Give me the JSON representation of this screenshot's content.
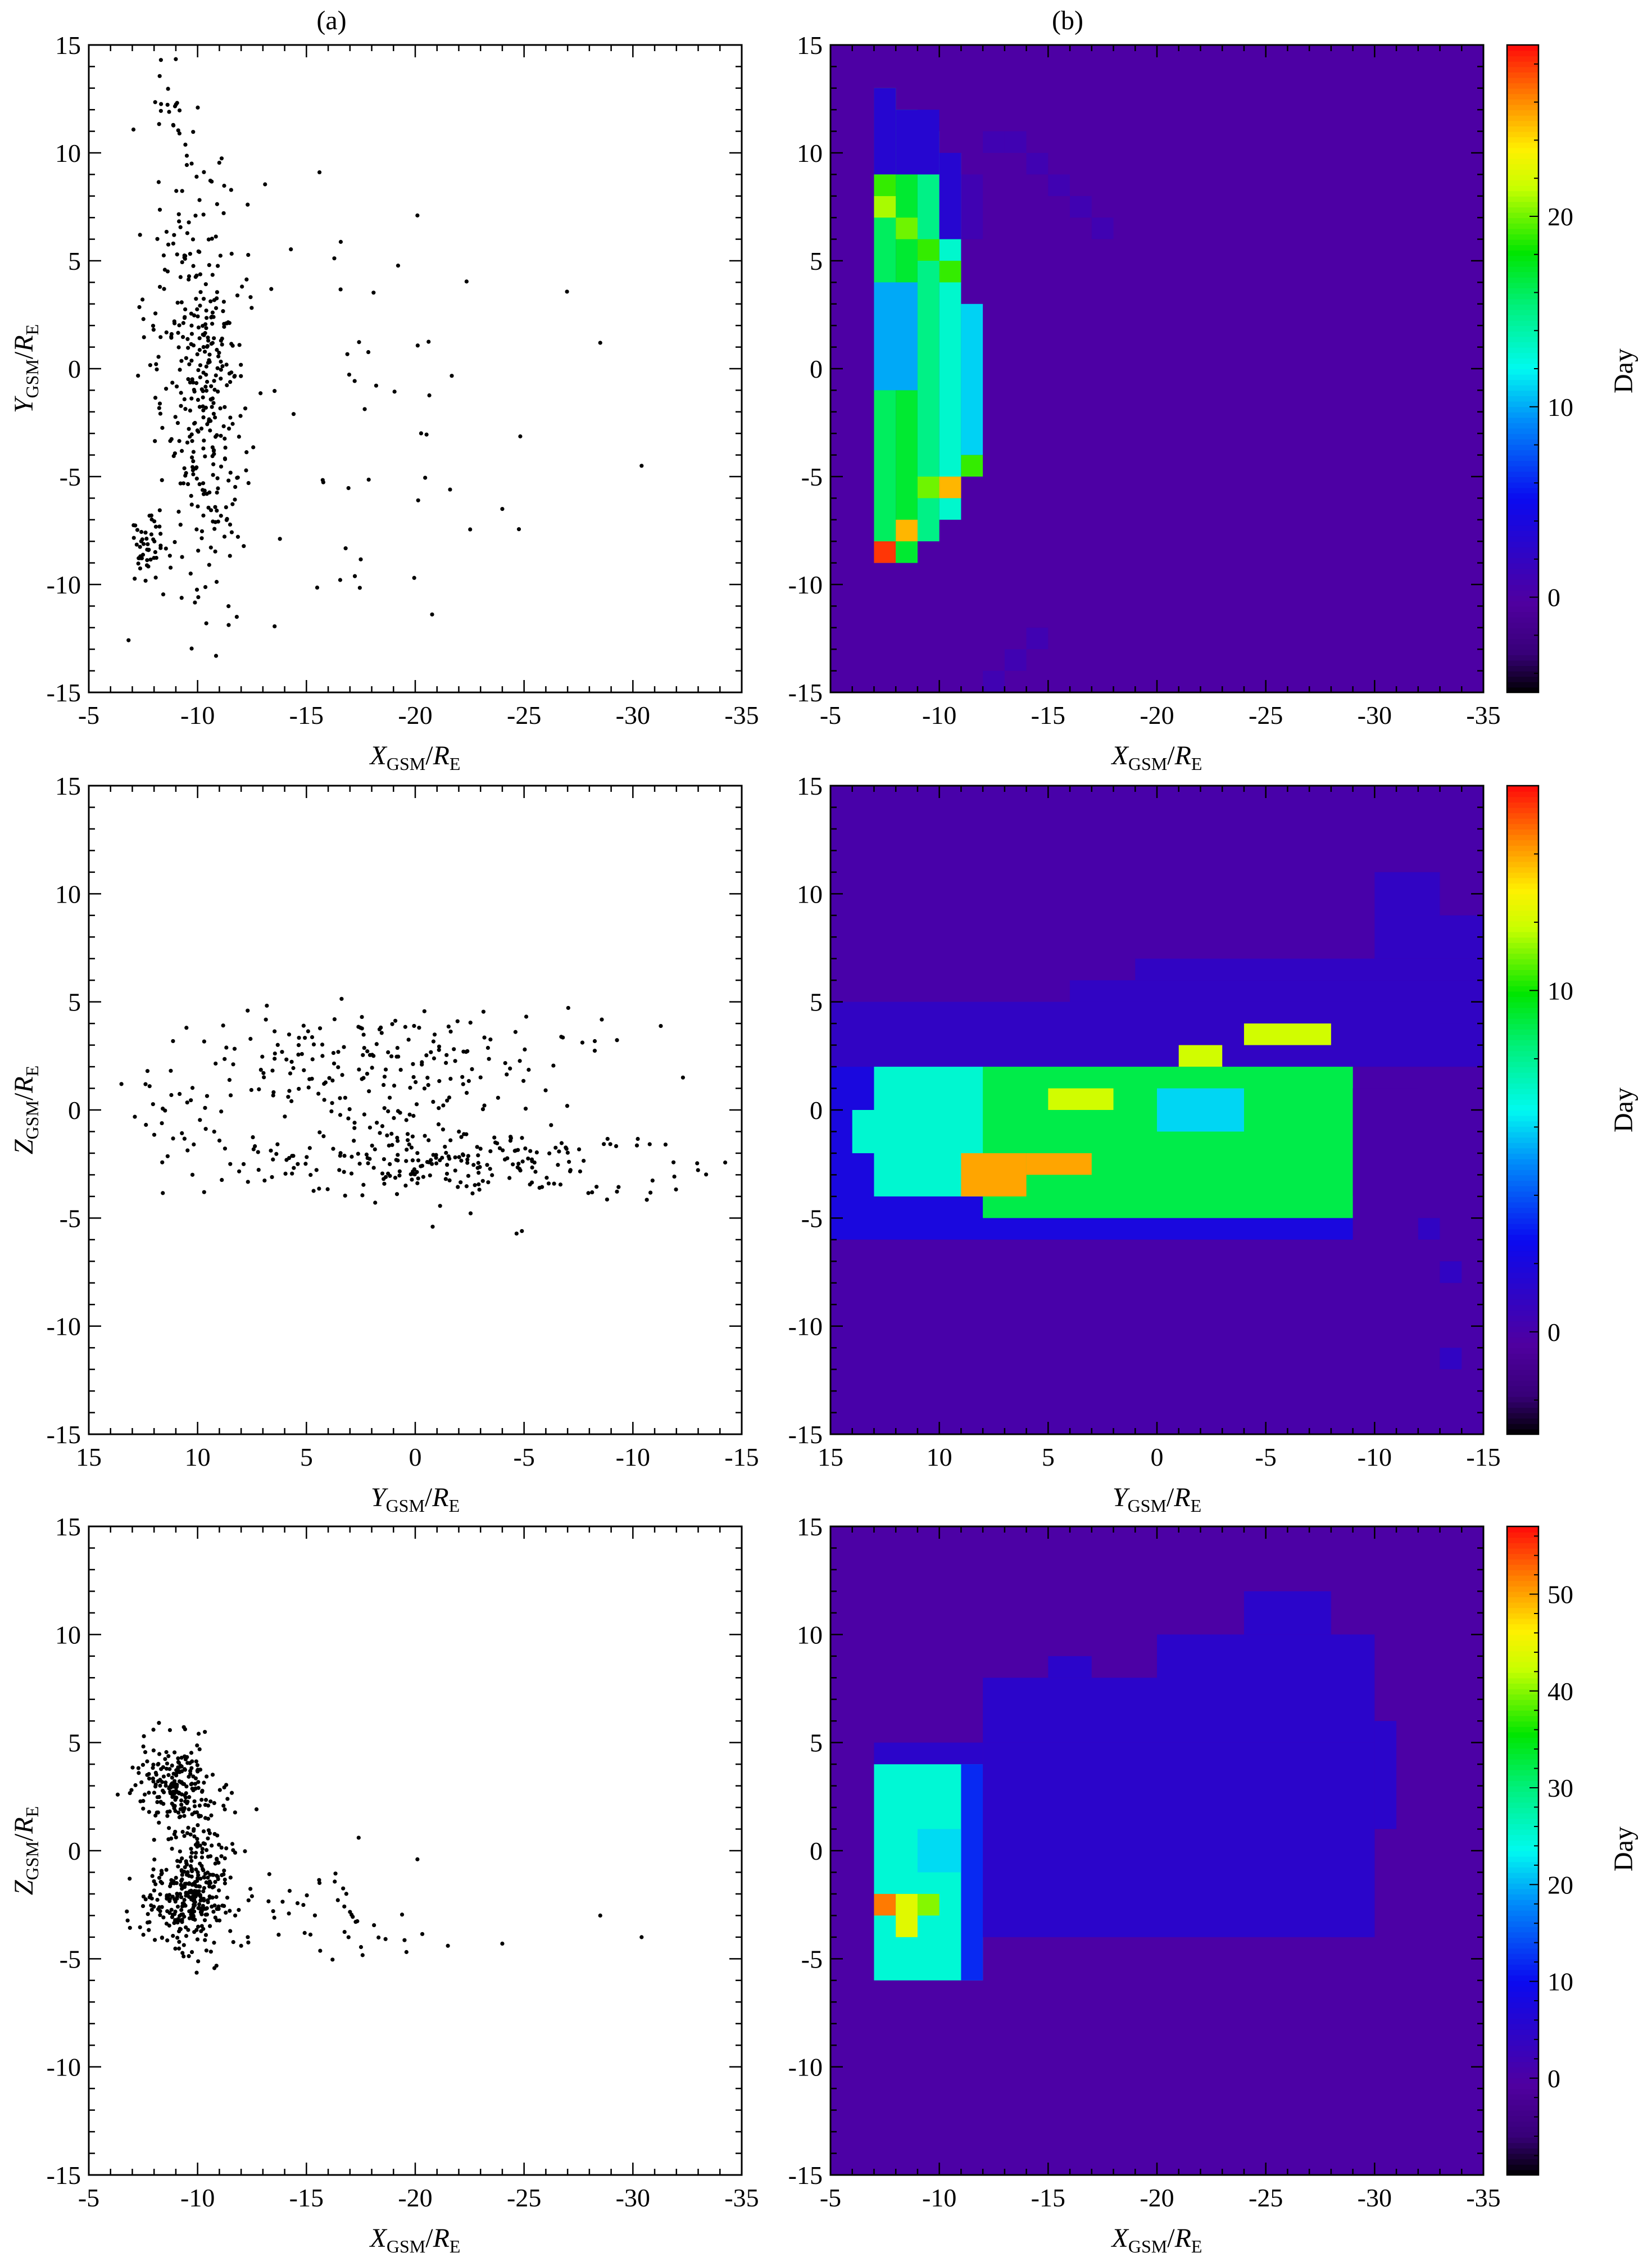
{
  "panel_labels": {
    "a": "(a)",
    "b": "(b)"
  },
  "colorbar_label": "Day",
  "chart_data": [
    {
      "id": "a1",
      "type": "scatter",
      "xlabel": "X",
      "xlabel_sub": "GSM",
      "xlabel_den": "R",
      "xlabel_den_sub": "E",
      "ylabel": "Y",
      "ylabel_sub": "GSM",
      "ylabel_den": "R",
      "ylabel_den_sub": "E",
      "xlim": [
        -5,
        -35
      ],
      "ylim": [
        15,
        -15
      ],
      "xticks": [
        -5,
        -10,
        -15,
        -20,
        -25,
        -30,
        -35
      ],
      "yticks": [
        -15,
        -10,
        -5,
        0,
        5,
        10,
        15
      ],
      "clusters": [
        {
          "n": 230,
          "xc": -10.6,
          "yc": -1.5,
          "xs": 0.8,
          "ys": 4.5
        },
        {
          "n": 150,
          "xc": -9.3,
          "yc": 1.5,
          "xs": 1.1,
          "ys": 5.5
        },
        {
          "n": 45,
          "xc": -7.7,
          "yc": -8.5,
          "xs": 0.4,
          "ys": 0.8
        },
        {
          "n": 12,
          "xc": -8.8,
          "yc": 11.5,
          "xs": 0.5,
          "ys": 0.6
        },
        {
          "n": 50,
          "xc": -17.0,
          "yc": -2.0,
          "xs": 3.5,
          "ys": 5.5
        }
      ],
      "points": [
        [
          -30.4,
          -4.5
        ],
        [
          -28.5,
          1.2
        ],
        [
          -24.0,
          -6.5
        ],
        [
          -21.6,
          -5.6
        ],
        [
          -20.1,
          7.1
        ],
        [
          -15.6,
          9.1
        ],
        [
          -12.3,
          7.6
        ],
        [
          -11.8,
          -11.5
        ],
        [
          -10.4,
          -11.8
        ]
      ]
    },
    {
      "id": "b1",
      "type": "heatmap",
      "xlabel": "X",
      "xlabel_sub": "GSM",
      "xlabel_den": "R",
      "xlabel_den_sub": "E",
      "xlim": [
        -5,
        -35
      ],
      "ylim": [
        15,
        -15
      ],
      "xticks": [
        -5,
        -10,
        -15,
        -20,
        -25,
        -30,
        -35
      ],
      "yticks": [
        -15,
        -10,
        -5,
        0,
        5,
        10,
        15
      ],
      "x_edges": [
        -5,
        -35
      ],
      "y_edges": [
        -15,
        15
      ],
      "nx": 30,
      "ny": 30,
      "colorbar": {
        "range": [
          -5,
          29
        ],
        "ticks": [
          0,
          10,
          20
        ]
      },
      "background": 0,
      "rects": [
        {
          "x0": -7,
          "x1": -8,
          "y0": -9,
          "y1": 13,
          "v": 16
        },
        {
          "x0": -8,
          "x1": -9,
          "y0": -9,
          "y1": 12,
          "v": 17
        },
        {
          "x0": -9,
          "x1": -10,
          "y0": -8,
          "y1": 11,
          "v": 15
        },
        {
          "x0": -10,
          "x1": -11,
          "y0": -7,
          "y1": 10,
          "v": 13
        },
        {
          "x0": -11,
          "x1": -12,
          "y0": -4,
          "y1": 3,
          "v": 11
        },
        {
          "x0": -7,
          "x1": -9,
          "y0": -1,
          "y1": 4,
          "v": 10
        },
        {
          "x0": -7,
          "x1": -8,
          "y0": 9,
          "y1": 13,
          "v": 3
        },
        {
          "x0": -8,
          "x1": -10,
          "y0": 9,
          "y1": 12,
          "v": 3
        },
        {
          "x0": -10,
          "x1": -11,
          "y0": 6,
          "y1": 10,
          "v": 3
        },
        {
          "x0": -11,
          "x1": -12,
          "y0": 6,
          "y1": 9,
          "v": 1
        },
        {
          "x0": -7,
          "x1": -8,
          "y0": -9,
          "y1": -8,
          "v": 28
        },
        {
          "x0": -8,
          "x1": -9,
          "y0": -9,
          "y1": -8,
          "v": 17
        },
        {
          "x0": -8,
          "x1": -9,
          "y0": -8,
          "y1": -7,
          "v": 25
        },
        {
          "x0": -9,
          "x1": -10,
          "y0": -6,
          "y1": -5,
          "v": 20
        },
        {
          "x0": -10,
          "x1": -11,
          "y0": -6,
          "y1": -5,
          "v": 25
        },
        {
          "x0": -11,
          "x1": -12,
          "y0": -5,
          "y1": -4,
          "v": 19
        },
        {
          "x0": -7,
          "x1": -8,
          "y0": 7,
          "y1": 8,
          "v": 21
        },
        {
          "x0": -7,
          "x1": -8,
          "y0": 8,
          "y1": 9,
          "v": 19
        },
        {
          "x0": -8,
          "x1": -9,
          "y0": 6,
          "y1": 7,
          "v": 20
        },
        {
          "x0": -9,
          "x1": -10,
          "y0": 5,
          "y1": 6,
          "v": 19
        },
        {
          "x0": -10,
          "x1": -11,
          "y0": 4,
          "y1": 5,
          "v": 19
        },
        {
          "x0": -12,
          "x1": -13,
          "y0": 10,
          "y1": 11,
          "v": 1
        },
        {
          "x0": -13,
          "x1": -14,
          "y0": 10,
          "y1": 11,
          "v": 1
        },
        {
          "x0": -14,
          "x1": -15,
          "y0": 9,
          "y1": 10,
          "v": 1
        },
        {
          "x0": -15,
          "x1": -16,
          "y0": 8,
          "y1": 9,
          "v": 1
        },
        {
          "x0": -16,
          "x1": -17,
          "y0": 7,
          "y1": 8,
          "v": 1
        },
        {
          "x0": -17,
          "x1": -18,
          "y0": 6,
          "y1": 7,
          "v": 1
        },
        {
          "x0": -12,
          "x1": -13,
          "y0": -15,
          "y1": -14,
          "v": 1
        },
        {
          "x0": -13,
          "x1": -14,
          "y0": -14,
          "y1": -13,
          "v": 1
        },
        {
          "x0": -14,
          "x1": -15,
          "y0": -13,
          "y1": -12,
          "v": 1
        }
      ]
    },
    {
      "id": "a2",
      "type": "scatter",
      "xlabel": "Y",
      "xlabel_sub": "GSM",
      "xlabel_den": "R",
      "xlabel_den_sub": "E",
      "ylabel": "Z",
      "ylabel_sub": "GSM",
      "ylabel_den": "R",
      "ylabel_den_sub": "E",
      "xlim": [
        15,
        -15
      ],
      "ylim": [
        15,
        -15
      ],
      "xticks": [
        15,
        10,
        5,
        0,
        -5,
        -10,
        -15
      ],
      "yticks": [
        15,
        10,
        5,
        0,
        -5,
        -10,
        -15
      ],
      "clusters": [
        {
          "n": 230,
          "xc": -1.5,
          "yc": -2.5,
          "xs": 5.5,
          "ys": 0.8
        },
        {
          "n": 130,
          "xc": 0.5,
          "yc": 2.8,
          "xs": 4.5,
          "ys": 1.0
        },
        {
          "n": 90,
          "xc": 2.0,
          "yc": 0.0,
          "xs": 4.0,
          "ys": 1.4
        },
        {
          "n": 25,
          "xc": 11.0,
          "yc": 0.3,
          "xs": 1.3,
          "ys": 0.9
        }
      ],
      "points": [
        [
          13.5,
          1.2
        ],
        [
          9.7,
          -3.8
        ],
        [
          8.5,
          -2.5
        ],
        [
          -0.8,
          -5.4
        ],
        [
          -4.9,
          -5.6
        ],
        [
          -12.3,
          1.5
        ],
        [
          -11.5,
          -1.6
        ]
      ]
    },
    {
      "id": "b2",
      "type": "heatmap",
      "xlabel": "Y",
      "xlabel_sub": "GSM",
      "xlabel_den": "R",
      "xlabel_den_sub": "E",
      "xlim": [
        15,
        -15
      ],
      "ylim": [
        15,
        -15
      ],
      "xticks": [
        15,
        10,
        5,
        0,
        -5,
        -10,
        -15
      ],
      "yticks": [
        -15,
        -10,
        -5,
        0,
        5,
        10,
        15
      ],
      "x_edges": [
        15,
        -15
      ],
      "y_edges": [
        -15,
        15
      ],
      "nx": 30,
      "ny": 30,
      "colorbar": {
        "range": [
          -3,
          16
        ],
        "ticks": [
          0,
          10
        ]
      },
      "background": 0,
      "rects": [
        {
          "x0": 15,
          "x1": -9,
          "y0": -6,
          "y1": 2,
          "v": 2
        },
        {
          "x0": 13,
          "x1": -9,
          "y0": -4,
          "y1": 3,
          "v": 7
        },
        {
          "x0": 8,
          "x1": -9,
          "y0": -5,
          "y1": 4,
          "v": 9
        },
        {
          "x0": 15,
          "x1": -15,
          "y0": 2,
          "y1": 5,
          "v": 1
        },
        {
          "x0": 4,
          "x1": -15,
          "y0": 5,
          "y1": 6,
          "v": 1
        },
        {
          "x0": 1,
          "x1": -15,
          "y0": 6,
          "y1": 7,
          "v": 1
        },
        {
          "x0": -10,
          "x1": -15,
          "y0": 7,
          "y1": 9,
          "v": 1
        },
        {
          "x0": -10,
          "x1": -13,
          "y0": 9,
          "y1": 11,
          "v": 1
        },
        {
          "x0": 6,
          "x1": 9,
          "y0": -4,
          "y1": -2,
          "v": 14
        },
        {
          "x0": 3,
          "x1": 6,
          "y0": -3,
          "y1": -2,
          "v": 14
        },
        {
          "x0": 2,
          "x1": 5,
          "y0": 0,
          "y1": 1,
          "v": 12
        },
        {
          "x0": -1,
          "x1": -3,
          "y0": 2,
          "y1": 3,
          "v": 12
        },
        {
          "x0": -4,
          "x1": -8,
          "y0": 3,
          "y1": 4,
          "v": 12
        },
        {
          "x0": 0,
          "x1": -4,
          "y0": -1,
          "y1": 1,
          "v": 6
        },
        {
          "x0": 10,
          "x1": 14,
          "y0": -2,
          "y1": 0,
          "v": 7
        },
        {
          "x0": -9,
          "x1": -12,
          "y0": -4,
          "y1": 1,
          "v": 0
        },
        {
          "x0": -12,
          "x1": -13,
          "y0": -6,
          "y1": -5,
          "v": 1
        },
        {
          "x0": -13,
          "x1": -14,
          "y0": -12,
          "y1": -11,
          "v": 1
        },
        {
          "x0": -13,
          "x1": -14,
          "y0": -8,
          "y1": -7,
          "v": 1
        },
        {
          "x0": -13,
          "x1": -14,
          "y0": 3,
          "y1": 4,
          "v": 1
        }
      ]
    },
    {
      "id": "a3",
      "type": "scatter",
      "xlabel": "X",
      "xlabel_sub": "GSM",
      "xlabel_den": "R",
      "xlabel_den_sub": "E",
      "ylabel": "Z",
      "ylabel_sub": "GSM",
      "ylabel_den": "R",
      "ylabel_den_sub": "E",
      "xlim": [
        -5,
        -35
      ],
      "ylim": [
        15,
        -15
      ],
      "xticks": [
        -5,
        -10,
        -15,
        -20,
        -25,
        -30,
        -35
      ],
      "yticks": [
        15,
        10,
        5,
        0,
        -5,
        -10,
        -15
      ],
      "clusters": [
        {
          "n": 250,
          "xc": -9.5,
          "yc": -2.5,
          "xs": 1.0,
          "ys": 1.0
        },
        {
          "n": 200,
          "xc": -9.0,
          "yc": 3.0,
          "xs": 0.9,
          "ys": 1.0
        },
        {
          "n": 120,
          "xc": -10.3,
          "yc": 0.0,
          "xs": 0.8,
          "ys": 1.5
        },
        {
          "n": 40,
          "xc": -16.5,
          "yc": -3.5,
          "xs": 1.6,
          "ys": 1.2
        }
      ],
      "points": [
        [
          -30.4,
          -4.0
        ],
        [
          -28.5,
          -3.0
        ],
        [
          -24.0,
          -4.3
        ],
        [
          -21.5,
          -4.4
        ],
        [
          -20.1,
          -0.4
        ],
        [
          -17.4,
          0.6
        ],
        [
          -12.0,
          -4.4
        ]
      ]
    },
    {
      "id": "b3",
      "type": "heatmap",
      "xlabel": "X",
      "xlabel_sub": "GSM",
      "xlabel_den": "R",
      "xlabel_den_sub": "E",
      "xlim": [
        -5,
        -35
      ],
      "ylim": [
        15,
        -15
      ],
      "xticks": [
        -5,
        -10,
        -15,
        -20,
        -25,
        -30,
        -35
      ],
      "yticks": [
        -15,
        -10,
        -5,
        0,
        5,
        10,
        15
      ],
      "x_edges": [
        -5,
        -35
      ],
      "y_edges": [
        -15,
        15
      ],
      "nx": 30,
      "ny": 30,
      "colorbar": {
        "range": [
          -10,
          57
        ],
        "ticks": [
          0,
          10,
          20,
          30,
          40,
          50
        ]
      },
      "background": 0,
      "rects": [
        {
          "x0": -7,
          "x1": -12,
          "y0": -6,
          "y1": 4,
          "v": 25
        },
        {
          "x0": -11,
          "x1": -12,
          "y0": -6,
          "y1": 4,
          "v": 12
        },
        {
          "x0": -7,
          "x1": -8,
          "y0": -3,
          "y1": -2,
          "v": 52
        },
        {
          "x0": -8,
          "x1": -9,
          "y0": -4,
          "y1": -2,
          "v": 44
        },
        {
          "x0": -9,
          "x1": -10,
          "y0": -3,
          "y1": -2,
          "v": 40
        },
        {
          "x0": -9,
          "x1": -11,
          "y0": -1,
          "y1": 1,
          "v": 22
        },
        {
          "x0": -7,
          "x1": -12,
          "y0": 4,
          "y1": 5,
          "v": 5
        },
        {
          "x0": -12,
          "x1": -30,
          "y0": -4,
          "y1": 5,
          "v": 5
        },
        {
          "x0": -12,
          "x1": -20,
          "y0": 5,
          "y1": 8,
          "v": 5
        },
        {
          "x0": -20,
          "x1": -30,
          "y0": 5,
          "y1": 10,
          "v": 5
        },
        {
          "x0": -30,
          "x1": -31,
          "y0": 1,
          "y1": 6,
          "v": 5
        },
        {
          "x0": -24,
          "x1": -28,
          "y0": 10,
          "y1": 12,
          "v": 5
        },
        {
          "x0": -15,
          "x1": -17,
          "y0": 8,
          "y1": 9,
          "v": 5
        },
        {
          "x0": -28,
          "x1": -30,
          "y0": -4,
          "y1": 1,
          "v": 5
        }
      ]
    }
  ]
}
